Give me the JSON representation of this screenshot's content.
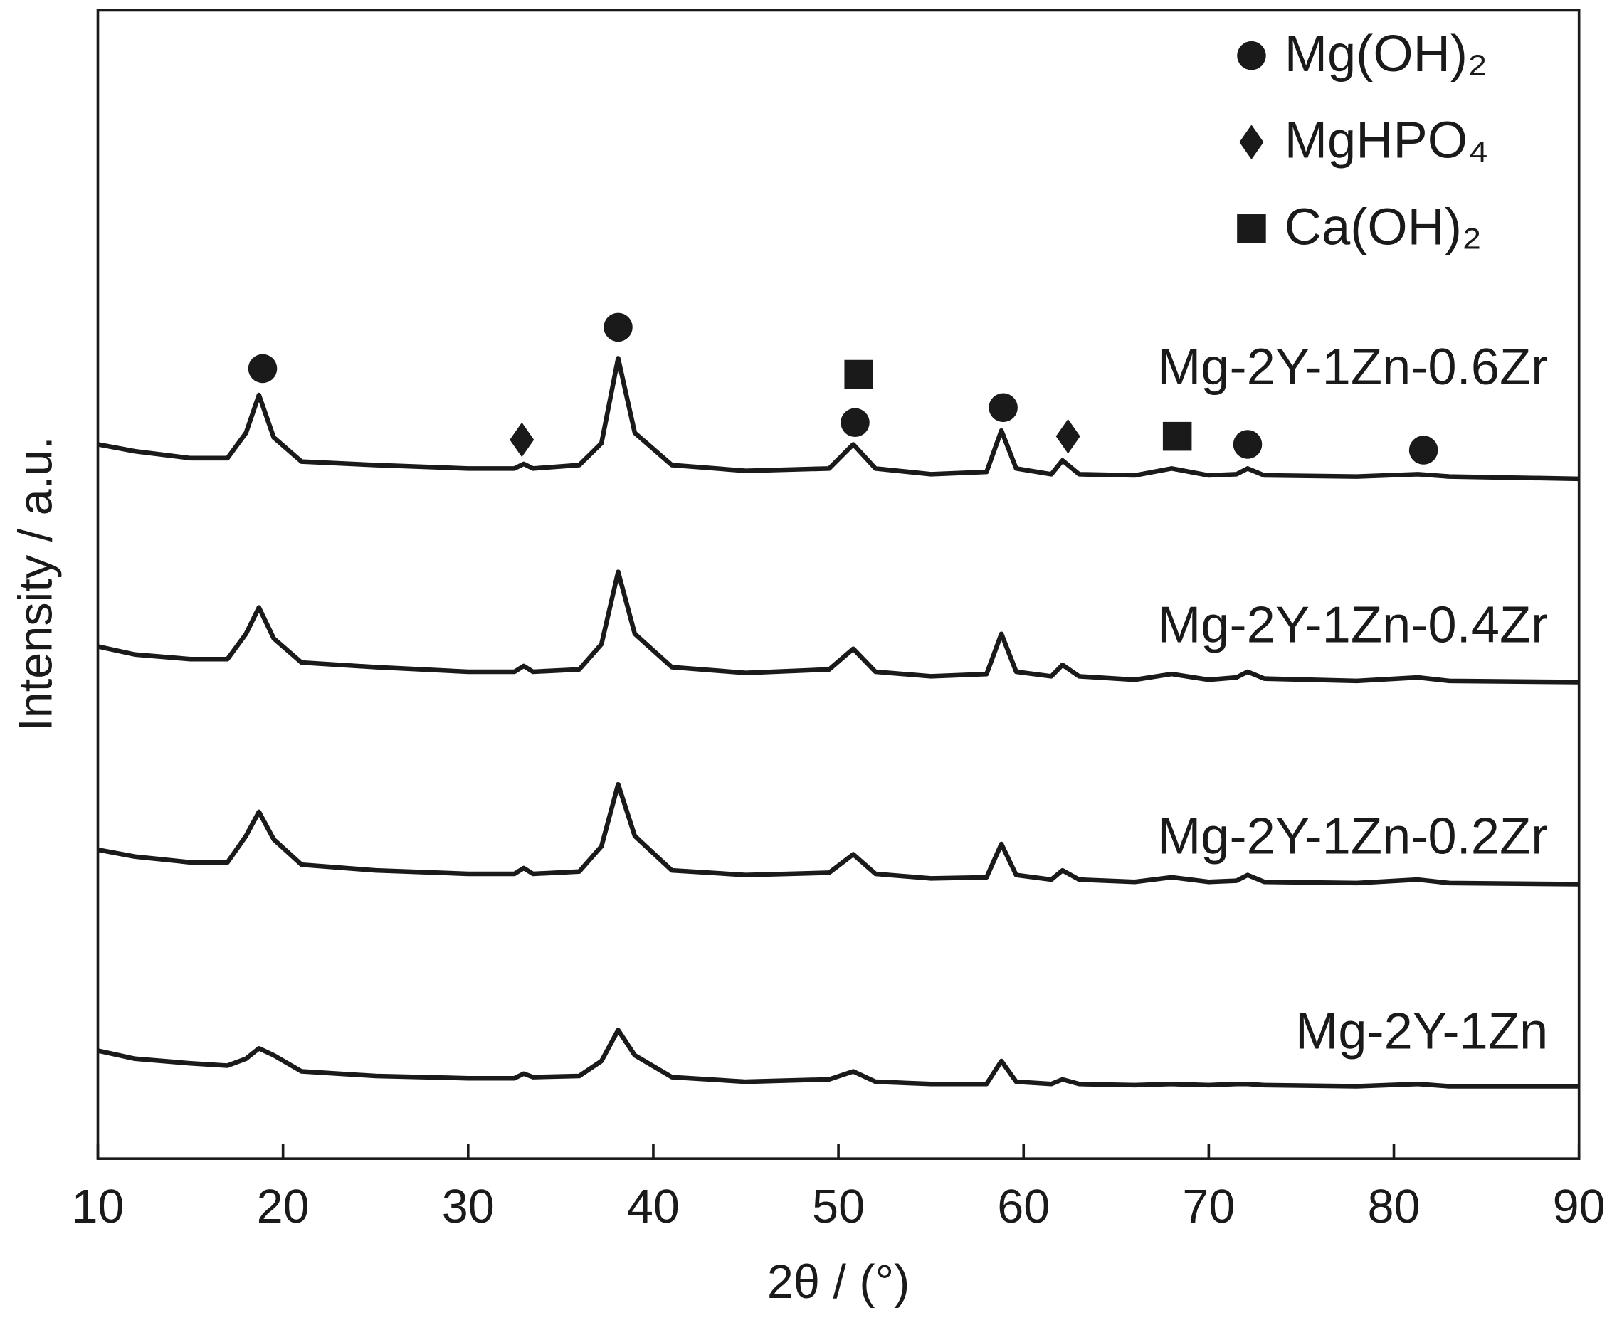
{
  "chart_data": {
    "type": "line",
    "x_label": "2θ / (°)",
    "y_label": "Intensity / a.u.",
    "xlim": [
      10,
      90
    ],
    "xticks": [
      10,
      20,
      30,
      40,
      50,
      60,
      70,
      80,
      90
    ],
    "ylim": [
      0,
      100
    ],
    "x": [
      10,
      12,
      15,
      17,
      18,
      18.7,
      19.5,
      21,
      25,
      30,
      32.5,
      33,
      33.5,
      36,
      37.2,
      38.1,
      39,
      41,
      45,
      49.5,
      50.8,
      52,
      55,
      58,
      58.8,
      59.6,
      61.5,
      62.1,
      63,
      66,
      68,
      70,
      71.5,
      72.1,
      73,
      78,
      81.3,
      83,
      90
    ],
    "series": [
      {
        "name": "Mg-2Y-1Zn-0.6Zr",
        "color": "#1a1a1a",
        "values": [
          62.2,
          61.6,
          61.0,
          61.0,
          63.2,
          66.5,
          62.8,
          60.7,
          60.4,
          60.1,
          60.1,
          60.5,
          60.1,
          60.4,
          62.3,
          69.7,
          63.2,
          60.4,
          59.9,
          60.1,
          62.2,
          60.1,
          59.6,
          59.8,
          63.4,
          60.1,
          59.6,
          60.8,
          59.6,
          59.5,
          60.1,
          59.5,
          59.6,
          60.1,
          59.5,
          59.4,
          59.6,
          59.4,
          59.2
        ]
      },
      {
        "name": "Mg-2Y-1Zn-0.4Zr",
        "color": "#1a1a1a",
        "values": [
          44.6,
          43.9,
          43.5,
          43.5,
          45.7,
          48.0,
          45.3,
          43.2,
          42.8,
          42.4,
          42.4,
          42.9,
          42.4,
          42.6,
          44.8,
          51.1,
          45.7,
          42.8,
          42.3,
          42.6,
          44.4,
          42.4,
          42.0,
          42.2,
          45.7,
          42.4,
          42.0,
          43.0,
          42.0,
          41.7,
          42.2,
          41.7,
          41.9,
          42.4,
          41.8,
          41.6,
          41.9,
          41.6,
          41.5
        ]
      },
      {
        "name": "Mg-2Y-1Zn-0.2Zr",
        "color": "#1a1a1a",
        "values": [
          26.9,
          26.3,
          25.8,
          25.8,
          28.1,
          30.2,
          27.8,
          25.6,
          25.1,
          24.8,
          24.8,
          25.3,
          24.8,
          25.0,
          27.2,
          32.6,
          28.1,
          25.1,
          24.7,
          24.9,
          26.5,
          24.8,
          24.4,
          24.5,
          27.4,
          24.7,
          24.3,
          25.1,
          24.3,
          24.1,
          24.5,
          24.1,
          24.2,
          24.7,
          24.1,
          24.0,
          24.3,
          24.0,
          23.9
        ]
      },
      {
        "name": "Mg-2Y-1Zn",
        "color": "#1a1a1a",
        "values": [
          9.4,
          8.7,
          8.3,
          8.1,
          8.7,
          9.6,
          9.0,
          7.6,
          7.2,
          7.0,
          7.0,
          7.4,
          7.1,
          7.2,
          8.5,
          11.2,
          9.0,
          7.1,
          6.7,
          6.9,
          7.6,
          6.7,
          6.5,
          6.5,
          8.5,
          6.7,
          6.5,
          6.9,
          6.5,
          6.4,
          6.5,
          6.4,
          6.5,
          6.5,
          6.4,
          6.3,
          6.5,
          6.3,
          6.3
        ]
      }
    ],
    "phases": [
      {
        "name": "Mg(OH)₂",
        "symbol": "circle"
      },
      {
        "name": "MgHPO₄",
        "symbol": "diamond"
      },
      {
        "name": "Ca(OH)₂",
        "symbol": "square"
      }
    ],
    "markers": [
      {
        "phase": 0,
        "x": 18.9,
        "y": 68.8
      },
      {
        "phase": 0,
        "x": 38.1,
        "y": 72.4
      },
      {
        "phase": 0,
        "x": 50.9,
        "y": 64.1
      },
      {
        "phase": 0,
        "x": 58.9,
        "y": 65.4
      },
      {
        "phase": 0,
        "x": 72.1,
        "y": 62.2
      },
      {
        "phase": 0,
        "x": 81.6,
        "y": 61.7
      },
      {
        "phase": 1,
        "x": 32.9,
        "y": 62.6
      },
      {
        "phase": 1,
        "x": 62.4,
        "y": 62.9
      },
      {
        "phase": 2,
        "x": 51.1,
        "y": 68.3
      },
      {
        "phase": 2,
        "x": 68.3,
        "y": 62.9
      }
    ],
    "legend": "upper right"
  }
}
